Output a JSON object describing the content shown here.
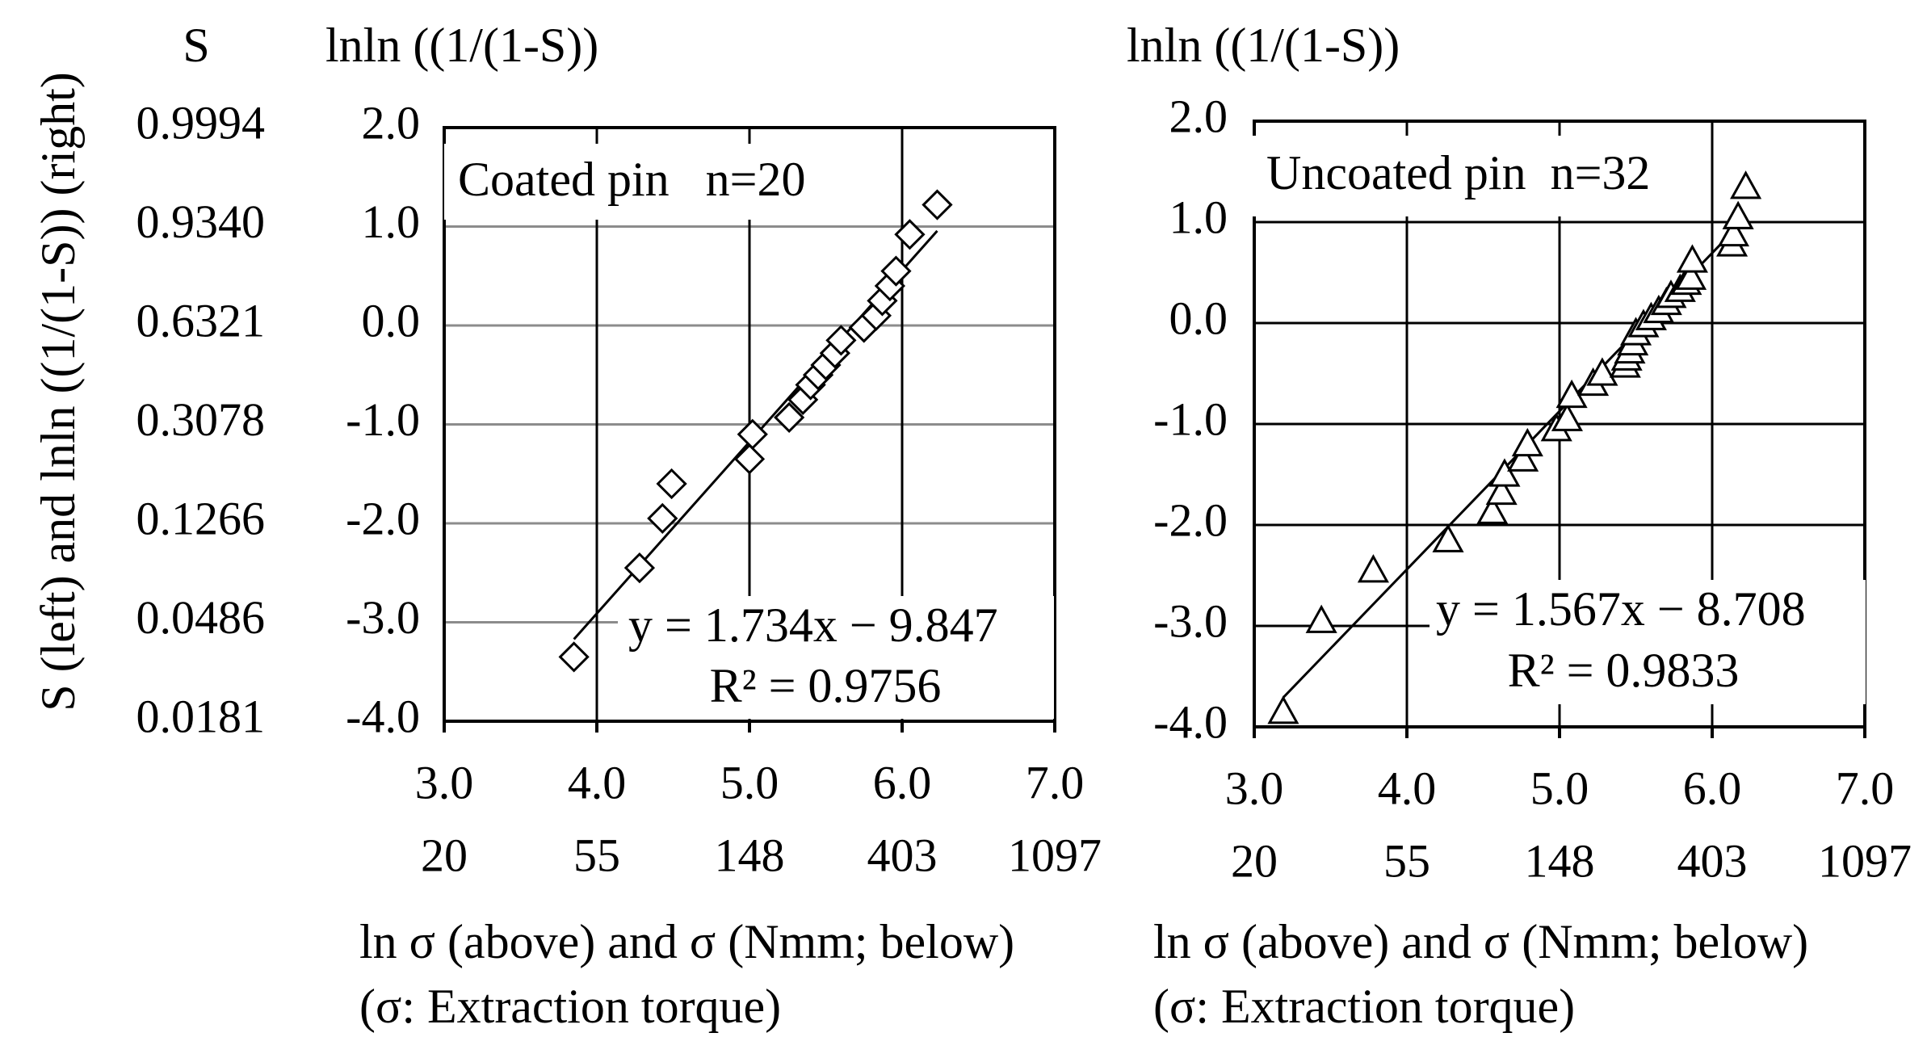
{
  "figure": {
    "ylabel_rotated": "S (left) and lnln ((1/(1-S)) (right)",
    "left_header": "S",
    "colors": {
      "axis": "#000000",
      "grid_vertical": "#000000",
      "grid_horizontal_left": "#8c8c8c",
      "grid_horizontal_right": "#000000",
      "markers": "#000000",
      "background": "#ffffff"
    }
  },
  "chart_data": [
    {
      "type": "scatter",
      "panel_title": "Coated pin   n=20",
      "y2_header": "lnln ((1/(1-S))",
      "xlabel": "ln σ (above) and σ (Nmm; below)",
      "xlabel_note": "(σ: Extraction torque)",
      "xlim": [
        3.0,
        7.0
      ],
      "ylim": [
        -4.0,
        2.0
      ],
      "x_ticks": [
        "3.0",
        "4.0",
        "5.0",
        "6.0",
        "7.0"
      ],
      "x_ticks_sigma": [
        "20",
        "55",
        "148",
        "403",
        "1097"
      ],
      "y_ticks": [
        "2.0",
        "1.0",
        "0.0",
        "-1.0",
        "-2.0",
        "-3.0",
        "-4.0"
      ],
      "s_ticks": [
        "0.9994",
        "0.9340",
        "0.6321",
        "0.3078",
        "0.1266",
        "0.0486",
        "0.0181"
      ],
      "marker": "diamond",
      "grid": "on",
      "fit": {
        "slope": 1.734,
        "intercept": -9.847,
        "equation": "y = 1.734x − 9.847",
        "r2_text": "R² = 0.9756"
      },
      "x": [
        3.85,
        4.28,
        4.43,
        4.49,
        5.0,
        5.02,
        5.26,
        5.35,
        5.4,
        5.45,
        5.5,
        5.56,
        5.6,
        5.75,
        5.83,
        5.87,
        5.92,
        5.96,
        6.05,
        6.23
      ],
      "y": [
        -3.35,
        -2.45,
        -1.95,
        -1.6,
        -1.35,
        -1.1,
        -0.93,
        -0.75,
        -0.6,
        -0.5,
        -0.4,
        -0.28,
        -0.15,
        -0.02,
        0.1,
        0.25,
        0.4,
        0.55,
        0.92,
        1.22
      ]
    },
    {
      "type": "scatter",
      "panel_title": "Uncoated pin  n=32",
      "y2_header": "lnln ((1/(1-S))",
      "xlabel": "ln σ (above) and σ (Nmm; below)",
      "xlabel_note": "(σ: Extraction torque)",
      "xlim": [
        3.0,
        7.0
      ],
      "ylim": [
        -4.0,
        2.0
      ],
      "x_ticks": [
        "3.0",
        "4.0",
        "5.0",
        "6.0",
        "7.0"
      ],
      "x_ticks_sigma": [
        "20",
        "55",
        "148",
        "403",
        "1097"
      ],
      "y_ticks": [
        "2.0",
        "1.0",
        "0.0",
        "-1.0",
        "-2.0",
        "-3.0",
        "-4.0"
      ],
      "marker": "triangle",
      "grid": "on",
      "fit": {
        "slope": 1.567,
        "intercept": -8.708,
        "equation": "y = 1.567x − 8.708",
        "r2_text": "R² = 0.9833"
      },
      "x": [
        3.19,
        3.44,
        3.78,
        4.27,
        4.56,
        4.62,
        4.64,
        4.76,
        4.79,
        4.98,
        5.05,
        5.08,
        5.22,
        5.28,
        5.43,
        5.44,
        5.46,
        5.48,
        5.5,
        5.55,
        5.6,
        5.65,
        5.7,
        5.73,
        5.79,
        5.83,
        5.86,
        5.87,
        6.13,
        6.14,
        6.17,
        6.22
      ],
      "y": [
        -3.85,
        -2.95,
        -2.45,
        -2.15,
        -1.87,
        -1.68,
        -1.5,
        -1.35,
        -1.2,
        -1.05,
        -0.95,
        -0.72,
        -0.6,
        -0.5,
        -0.42,
        -0.35,
        -0.28,
        -0.2,
        -0.1,
        -0.02,
        0.05,
        0.12,
        0.2,
        0.27,
        0.33,
        0.4,
        0.45,
        0.62,
        0.78,
        0.88,
        1.05,
        1.35
      ]
    }
  ]
}
